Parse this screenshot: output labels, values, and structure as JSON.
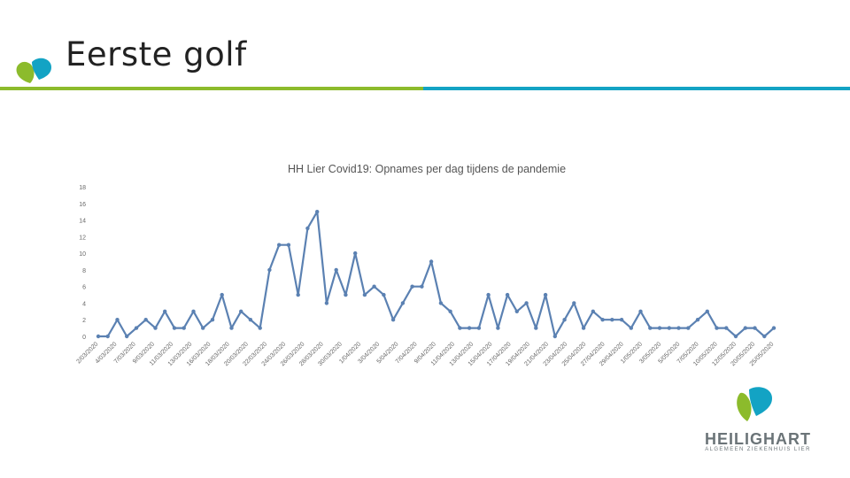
{
  "slide": {
    "title": "Eerste golf"
  },
  "colors": {
    "line": "#5b81b2",
    "accent_green": "#8cbb2c",
    "accent_blue": "#13a3c4"
  },
  "brand": {
    "name": "HEILIGHART",
    "subtitle": "ALGEMEEN ZIEKENHUIS LIER"
  },
  "chart_data": {
    "type": "line",
    "title": "HH Lier Covid19: Opnames per dag tijdens de pandemie",
    "xlabel": "",
    "ylabel": "",
    "ylim": [
      0,
      18
    ],
    "yticks": [
      "0",
      "2",
      "4",
      "6",
      "8",
      "10",
      "12",
      "14",
      "16",
      "18"
    ],
    "grid": false,
    "legend": "none",
    "xtick_labels": [
      "2/03/2020",
      "4/03/2020",
      "7/03/2020",
      "9/03/2020",
      "11/03/2020",
      "13/03/2020",
      "16/03/2020",
      "18/03/2020",
      "20/03/2020",
      "22/03/2020",
      "24/03/2020",
      "26/03/2020",
      "28/03/2020",
      "30/03/2020",
      "1/04/2020",
      "3/04/2020",
      "5/04/2020",
      "7/04/2020",
      "9/04/2020",
      "11/04/2020",
      "13/04/2020",
      "15/04/2020",
      "17/04/2020",
      "19/04/2020",
      "21/04/2020",
      "23/04/2020",
      "25/04/2020",
      "27/04/2020",
      "29/04/2020",
      "1/05/2020",
      "3/05/2020",
      "5/05/2020",
      "7/05/2020",
      "10/05/2020",
      "12/05/2020",
      "20/05/2020",
      "25/05/2020"
    ],
    "series": [
      {
        "values": [
          0,
          0,
          2,
          0,
          1,
          2,
          1,
          3,
          1,
          1,
          3,
          1,
          2,
          5,
          1,
          3,
          2,
          1,
          8,
          11,
          11,
          5,
          13,
          15,
          4,
          8,
          5,
          10,
          5,
          6,
          5,
          2,
          4,
          6,
          6,
          9,
          4,
          3,
          1,
          1,
          1,
          5,
          1,
          5,
          3,
          4,
          1,
          5,
          0,
          2,
          4,
          1,
          3,
          2,
          2,
          2,
          1,
          3,
          1,
          1,
          1,
          1,
          1,
          2,
          3,
          1,
          1,
          0,
          1,
          1,
          0,
          1
        ]
      }
    ]
  }
}
